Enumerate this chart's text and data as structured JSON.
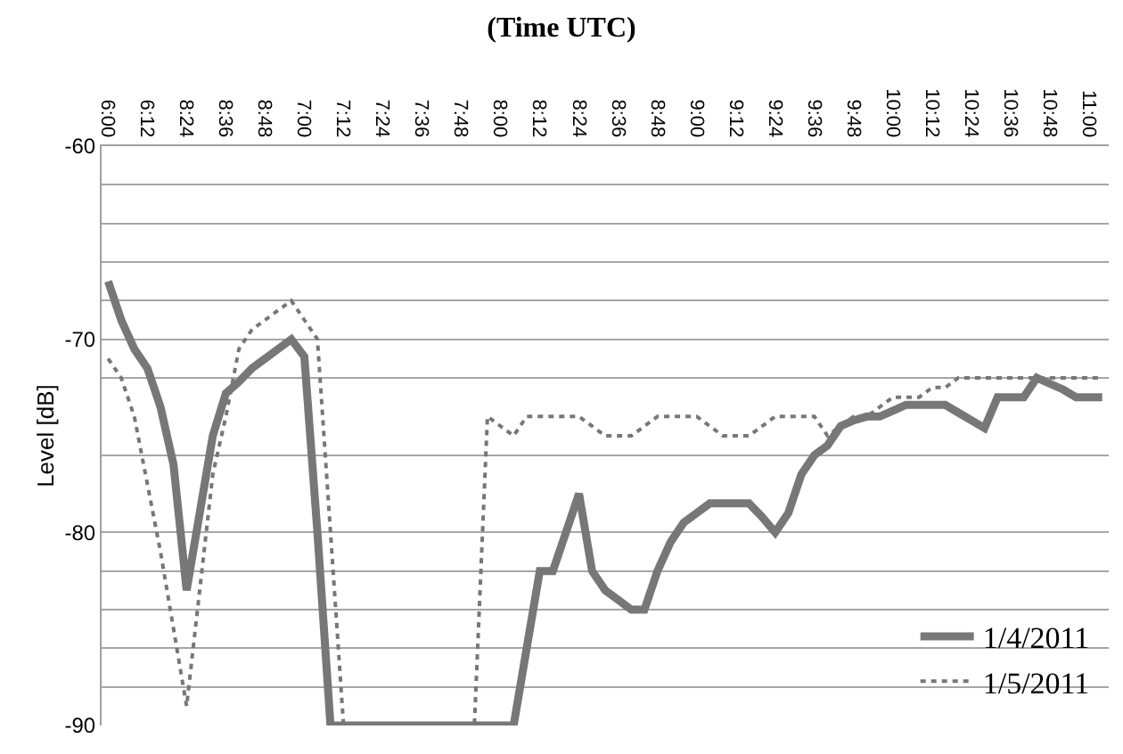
{
  "chart_data": {
    "type": "line",
    "title": "(Time UTC)",
    "ylabel": "Level [dB]",
    "categories": [
      "6:00",
      null,
      null,
      "6:12",
      null,
      null,
      "8:24",
      null,
      null,
      "8:36",
      null,
      null,
      "8:48",
      null,
      null,
      "7:00",
      null,
      null,
      "7:12",
      null,
      null,
      "7:24",
      null,
      null,
      "7:36",
      null,
      null,
      "7:48",
      null,
      null,
      "8:00",
      null,
      null,
      "8:12",
      null,
      null,
      "8:24",
      null,
      null,
      "8:36",
      null,
      null,
      "8:48",
      null,
      null,
      "9:00",
      null,
      null,
      "9:12",
      null,
      null,
      "9:24",
      null,
      null,
      "9:36",
      null,
      null,
      "9:48",
      null,
      null,
      "10:00",
      null,
      null,
      "10:12",
      null,
      null,
      "10:24",
      null,
      null,
      "10:36",
      null,
      null,
      "10:48",
      null,
      null,
      "11:00",
      null
    ],
    "series": [
      {
        "name": "1/4/2011",
        "color": "#777777",
        "line_style": "solid",
        "values": [
          -67,
          -69,
          -70.5,
          -71.5,
          -73.5,
          -76.5,
          -83,
          -79,
          -75,
          -72.8,
          -72.2,
          -71.5,
          -71,
          -70.5,
          -70,
          -70.9,
          -80,
          -90,
          -90,
          -90,
          -90,
          -90,
          -90,
          -90,
          -90,
          -90,
          -90,
          -90,
          -90,
          -90,
          -90,
          -90,
          -86,
          -82,
          -82,
          -80,
          -78,
          -82,
          -83,
          -83.5,
          -84,
          -84,
          -82,
          -80.5,
          -79.5,
          -79,
          -78.5,
          -78.5,
          -78.5,
          -78.5,
          -79.2,
          -80,
          -79,
          -77,
          -76,
          -75.5,
          -74.5,
          -74.2,
          -74,
          -74,
          -73.7,
          -73.4,
          -73.4,
          -73.4,
          -73.4,
          -73.8,
          -74.2,
          -74.6,
          -73,
          -73,
          -73,
          -72,
          -72.3,
          -72.6,
          -73,
          -73,
          -73
        ]
      },
      {
        "name": "1/5/2011",
        "color": "#777777",
        "line_style": "dotted",
        "values": [
          -71,
          -72,
          -74,
          -77.5,
          -81,
          -85,
          -89,
          -83,
          -77,
          -74,
          -70.5,
          -69.5,
          -69,
          -68.5,
          -68,
          -69,
          -70,
          -80,
          -90,
          -90,
          -90,
          -90,
          -90,
          -90,
          -90,
          -90,
          -90,
          -90,
          -90,
          -74,
          -74.5,
          -75,
          -74,
          -74,
          -74,
          -74,
          -74,
          -74.5,
          -75,
          -75,
          -75,
          -74.5,
          -74,
          -74,
          -74,
          -74,
          -74.5,
          -75,
          -75,
          -75,
          -74.5,
          -74,
          -74,
          -74,
          -74,
          -75,
          -74.5,
          -74,
          -74,
          -73.5,
          -73,
          -73,
          -73,
          -72.5,
          -72.5,
          -72,
          -72,
          -72,
          -72,
          -72,
          -72,
          -72,
          -72,
          -72,
          -72,
          -72,
          -72
        ]
      }
    ],
    "ylim": [
      -90,
      -60
    ],
    "yticks": [
      -60,
      {
        "value": -62,
        "label": null
      },
      {
        "value": -64,
        "label": null
      },
      {
        "value": -66,
        "label": null
      },
      {
        "value": -68,
        "label": null
      },
      -70,
      {
        "value": -72,
        "label": null
      },
      {
        "value": -76,
        "label": null
      },
      -80,
      {
        "value": -82,
        "label": null
      },
      {
        "value": -84,
        "label": null
      },
      {
        "value": -86,
        "label": null
      },
      {
        "value": -88,
        "label": null
      },
      -90
    ],
    "grid": "y",
    "legend": "bottom right",
    "marker": "none"
  }
}
